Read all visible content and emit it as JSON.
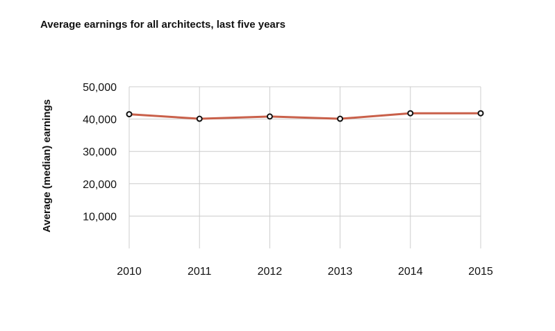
{
  "chart_data": {
    "type": "line",
    "title": "Average earnings for all architects, last five years",
    "xlabel": "",
    "ylabel": "Average (median) earnings",
    "categories": [
      "2010",
      "2011",
      "2012",
      "2013",
      "2014",
      "2015"
    ],
    "series": [
      {
        "values": [
          41500,
          40100,
          40800,
          40100,
          41800,
          41800
        ],
        "color": "#c9604a"
      }
    ],
    "yticks": [
      10000,
      20000,
      30000,
      40000,
      50000
    ],
    "ytick_labels": [
      "10,000",
      "20,000",
      "30,000",
      "40,000",
      "50,000"
    ],
    "ylim": [
      0,
      50000
    ],
    "grid": true,
    "marker": "hollow-circle",
    "colors": {
      "line": "#c9604a",
      "grid": "#cccccc",
      "marker_stroke": "#111111",
      "marker_fill": "#ffffff",
      "text": "#111111"
    }
  }
}
